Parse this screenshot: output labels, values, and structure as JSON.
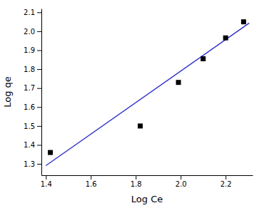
{
  "chart_data": {
    "type": "scatter",
    "x_label": "Log Ce",
    "y_label": "Log qe",
    "xlim": [
      1.38,
      2.32
    ],
    "ylim": [
      1.24,
      2.12
    ],
    "xticks": [
      1.4,
      1.6,
      1.8,
      {
        "value": 2.0,
        "label": "2.0"
      },
      2.2
    ],
    "yticks": [
      1.3,
      1.4,
      1.5,
      1.6,
      1.7,
      1.8,
      1.9,
      {
        "value": 2.0,
        "label": "2.0"
      },
      2.1
    ],
    "grid": false,
    "series": [
      {
        "type": "scatter",
        "x": [
          1.42,
          1.82,
          1.99,
          2.1,
          2.2,
          2.28
        ],
        "values": [
          1.36,
          1.5,
          1.73,
          1.855,
          1.965,
          2.05
        ],
        "color": "black",
        "marker": "square"
      },
      {
        "type": "line",
        "x": [
          1.4,
          2.305
        ],
        "values": [
          1.2908,
          2.04376
        ],
        "color": "#3333cc"
      }
    ]
  }
}
